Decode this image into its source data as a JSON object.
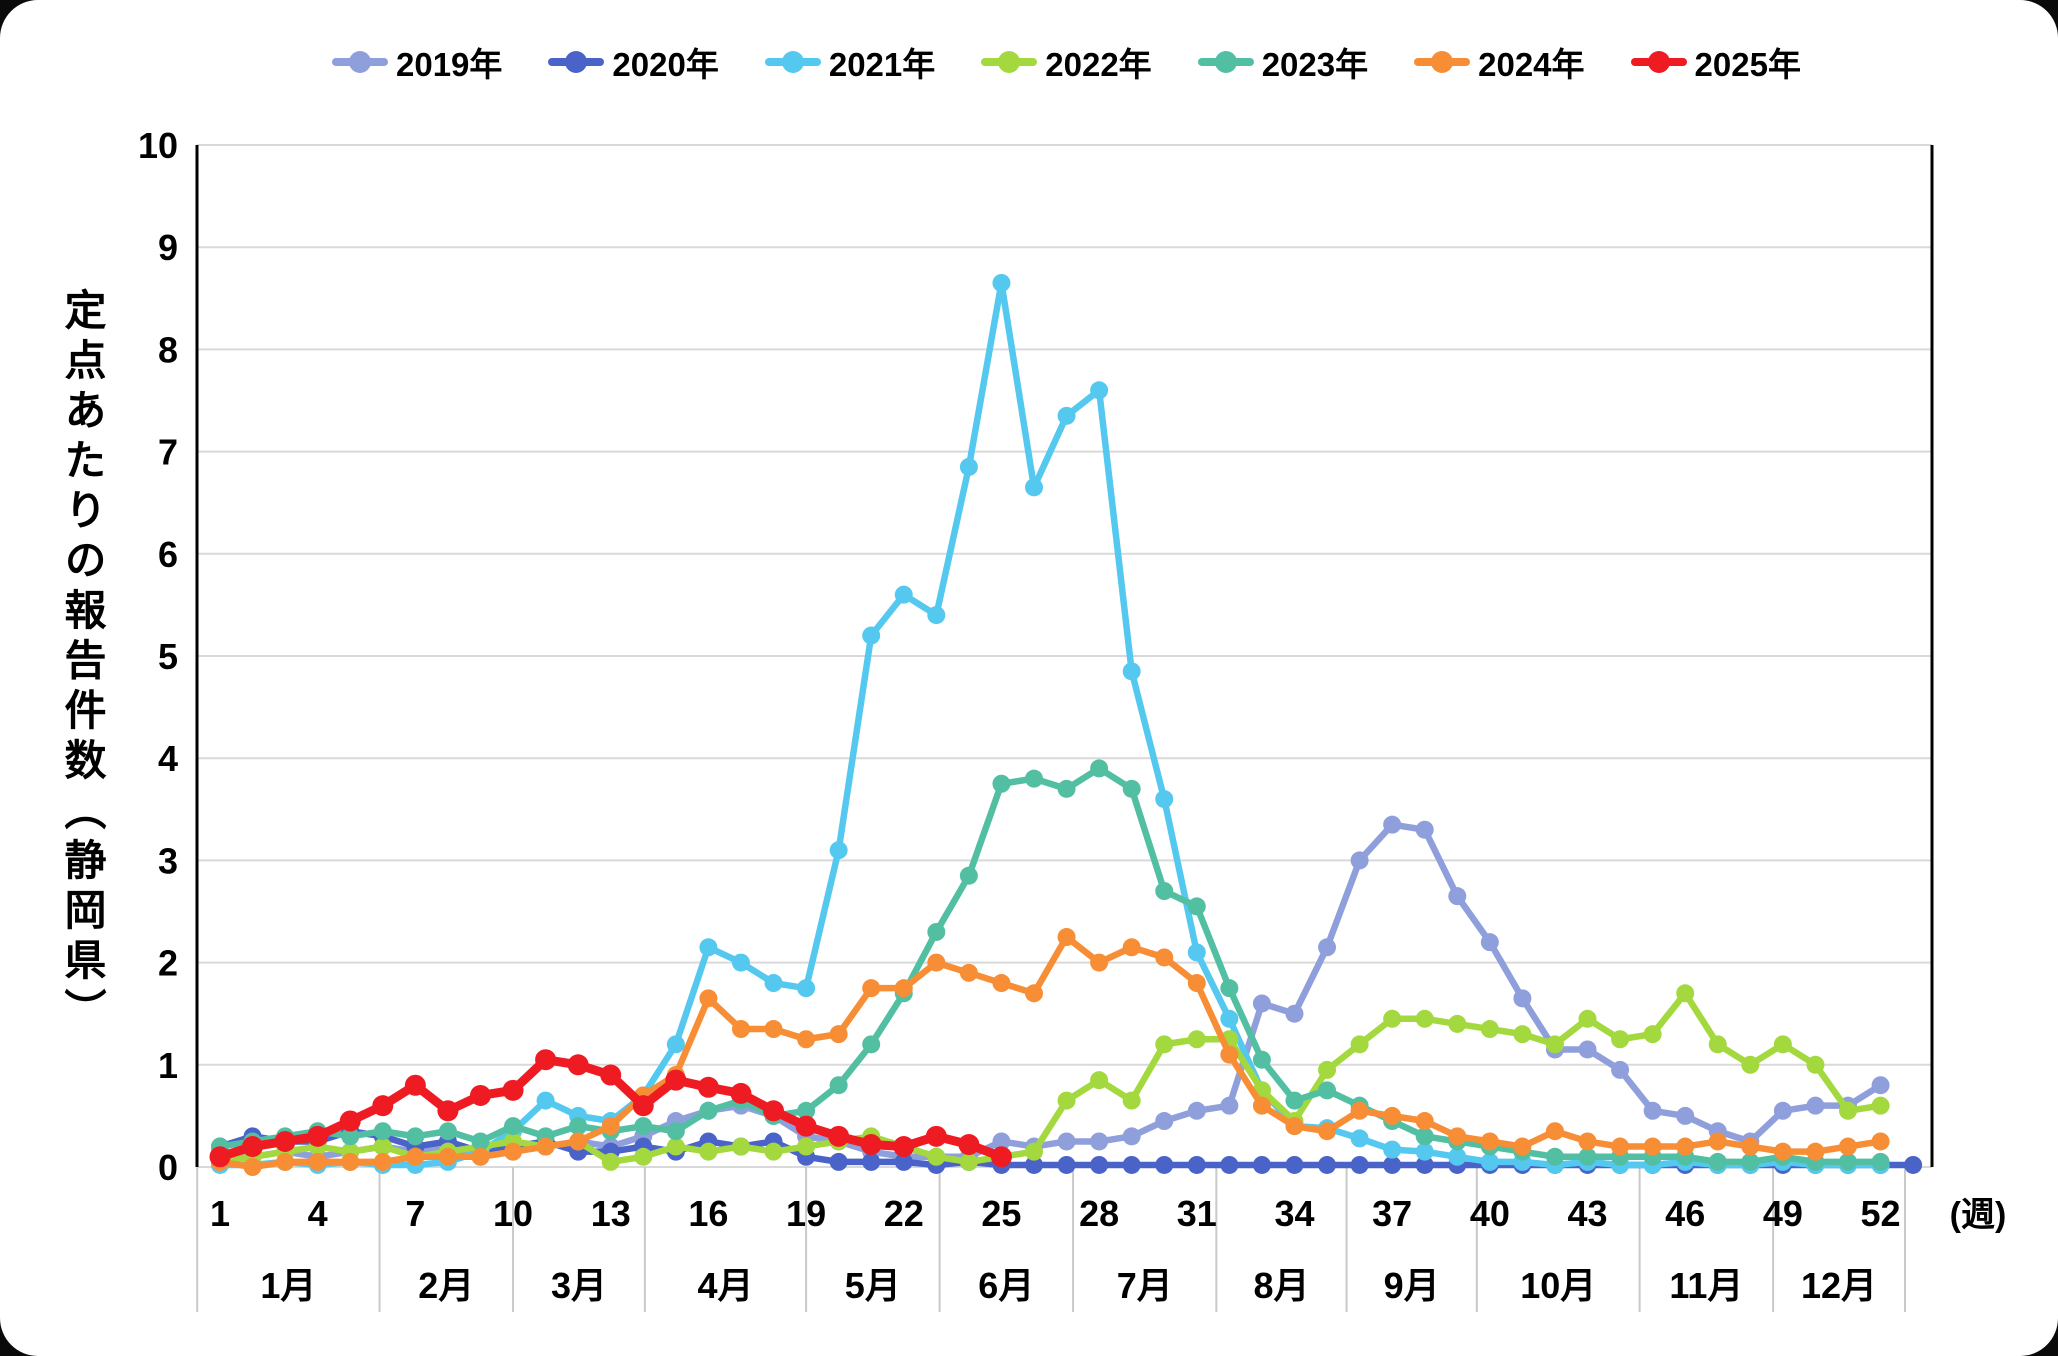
{
  "y_axis": {
    "title": "定点あたりの報告件数（静岡県）",
    "min": 0,
    "max": 10,
    "tick_step": 1,
    "tick_labels": [
      "0",
      "1",
      "2",
      "3",
      "4",
      "5",
      "6",
      "7",
      "8",
      "9",
      "10"
    ]
  },
  "x_axis": {
    "unit_label": "(週)",
    "tick_weeks": [
      1,
      4,
      7,
      10,
      13,
      16,
      19,
      22,
      25,
      28,
      31,
      34,
      37,
      40,
      43,
      46,
      49,
      52
    ],
    "month_labels": [
      "1月",
      "2月",
      "3月",
      "4月",
      "5月",
      "6月",
      "7月",
      "8月",
      "9月",
      "10月",
      "11月",
      "12月"
    ],
    "month_boundaries_week": [
      0.3,
      5.9,
      10.0,
      14.05,
      19.0,
      23.1,
      27.2,
      31.6,
      35.6,
      39.6,
      44.6,
      48.7,
      52.75
    ]
  },
  "chart_data": {
    "type": "line",
    "ylabel": "定点あたりの報告件数（静岡県）",
    "xlabel": "週",
    "ylim": [
      0,
      10
    ],
    "x_range_weeks": [
      1,
      53
    ],
    "grid": "horizontal",
    "legend_position": "top",
    "series": [
      {
        "name": "2019年",
        "color": "#8F9FDC",
        "start_week": 1,
        "values": [
          0.15,
          0.1,
          0.15,
          0.1,
          0.15,
          0.2,
          0.15,
          0.2,
          0.1,
          0.15,
          0.2,
          0.25,
          0.2,
          0.3,
          0.45,
          0.55,
          0.6,
          0.5,
          0.3,
          0.25,
          0.15,
          0.1,
          0.1,
          0.1,
          0.25,
          0.2,
          0.25,
          0.25,
          0.3,
          0.45,
          0.55,
          0.6,
          1.6,
          1.5,
          2.15,
          3.0,
          3.35,
          3.3,
          2.65,
          2.2,
          1.65,
          1.15,
          1.15,
          0.95,
          0.55,
          0.5,
          0.35,
          0.25,
          0.55,
          0.6,
          0.6,
          0.8
        ]
      },
      {
        "name": "2020年",
        "color": "#4A63C8",
        "start_week": 1,
        "values": [
          0.2,
          0.3,
          0.25,
          0.25,
          0.35,
          0.3,
          0.2,
          0.25,
          0.15,
          0.2,
          0.25,
          0.15,
          0.15,
          0.2,
          0.15,
          0.25,
          0.2,
          0.25,
          0.1,
          0.05,
          0.05,
          0.05,
          0.02,
          0.05,
          0.02,
          0.02,
          0.02,
          0.02,
          0.02,
          0.02,
          0.02,
          0.02,
          0.02,
          0.02,
          0.02,
          0.02,
          0.02,
          0.02,
          0.02,
          0.02,
          0.02,
          0.02,
          0.02,
          0.02,
          0.02,
          0.02,
          0.02,
          0.02,
          0.02,
          0.02,
          0.02,
          0.02,
          0.02
        ]
      },
      {
        "name": "2021年",
        "color": "#55C8F0",
        "start_week": 1,
        "values": [
          0.02,
          0.02,
          0.05,
          0.02,
          0.05,
          0.02,
          0.02,
          0.05,
          0.15,
          0.35,
          0.65,
          0.5,
          0.45,
          0.7,
          1.2,
          2.15,
          2.0,
          1.8,
          1.75,
          3.1,
          5.2,
          5.6,
          5.4,
          6.85,
          8.65,
          6.65,
          7.35,
          7.6,
          4.85,
          3.6,
          2.1,
          1.45,
          0.75,
          0.4,
          0.38,
          0.28,
          0.17,
          0.15,
          0.1,
          0.05,
          0.05,
          0.02,
          0.05,
          0.02,
          0.02,
          0.05,
          0.02,
          0.02,
          0.05,
          0.02,
          0.02,
          0.02
        ]
      },
      {
        "name": "2022年",
        "color": "#A3D93F",
        "start_week": 1,
        "values": [
          0.05,
          0.1,
          0.15,
          0.2,
          0.15,
          0.2,
          0.1,
          0.15,
          0.2,
          0.25,
          0.2,
          0.25,
          0.05,
          0.1,
          0.2,
          0.15,
          0.2,
          0.15,
          0.2,
          0.25,
          0.3,
          0.2,
          0.1,
          0.05,
          0.1,
          0.15,
          0.65,
          0.85,
          0.65,
          1.2,
          1.25,
          1.25,
          0.75,
          0.45,
          0.95,
          1.2,
          1.45,
          1.45,
          1.4,
          1.35,
          1.3,
          1.2,
          1.45,
          1.25,
          1.3,
          1.7,
          1.2,
          1.0,
          1.2,
          1.0,
          0.55,
          0.6
        ]
      },
      {
        "name": "2023年",
        "color": "#52BFA3",
        "start_week": 1,
        "values": [
          0.2,
          0.25,
          0.3,
          0.35,
          0.3,
          0.35,
          0.3,
          0.35,
          0.25,
          0.4,
          0.3,
          0.4,
          0.35,
          0.4,
          0.35,
          0.55,
          0.65,
          0.5,
          0.55,
          0.8,
          1.2,
          1.7,
          2.3,
          2.85,
          3.75,
          3.8,
          3.7,
          3.9,
          3.7,
          2.7,
          2.55,
          1.75,
          1.05,
          0.65,
          0.75,
          0.6,
          0.45,
          0.3,
          0.25,
          0.2,
          0.15,
          0.1,
          0.1,
          0.1,
          0.1,
          0.1,
          0.05,
          0.05,
          0.1,
          0.05,
          0.05,
          0.05
        ]
      },
      {
        "name": "2024年",
        "color": "#F78E35",
        "start_week": 1,
        "values": [
          0.05,
          0.0,
          0.05,
          0.05,
          0.05,
          0.05,
          0.1,
          0.1,
          0.1,
          0.15,
          0.2,
          0.25,
          0.4,
          0.7,
          0.9,
          1.65,
          1.35,
          1.35,
          1.25,
          1.3,
          1.75,
          1.75,
          2.0,
          1.9,
          1.8,
          1.7,
          2.25,
          2.0,
          2.15,
          2.05,
          1.8,
          1.1,
          0.6,
          0.4,
          0.35,
          0.55,
          0.5,
          0.45,
          0.3,
          0.25,
          0.2,
          0.35,
          0.25,
          0.2,
          0.2,
          0.2,
          0.25,
          0.2,
          0.15,
          0.15,
          0.2,
          0.25
        ]
      },
      {
        "name": "2025年",
        "color": "#EE1B23",
        "start_week": 1,
        "values": [
          0.1,
          0.2,
          0.25,
          0.3,
          0.45,
          0.6,
          0.8,
          0.55,
          0.7,
          0.75,
          1.05,
          1.0,
          0.9,
          0.6,
          0.85,
          0.78,
          0.72,
          0.55,
          0.4,
          0.3,
          0.22,
          0.2,
          0.3,
          0.22,
          0.1
        ]
      }
    ]
  }
}
